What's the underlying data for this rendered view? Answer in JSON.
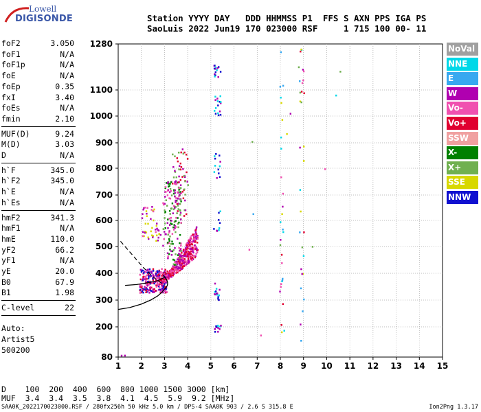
{
  "logo": {
    "line1": "Lowell",
    "line2": "DIGISONDE"
  },
  "header": {
    "row1": "Station YYYY DAY   DDD HHMMSS P1  FFS S AXN PPS IGA PS",
    "row2": "SaoLuis 2022 Jun19 170 023000 RSF     1 715 100 00- 11"
  },
  "params": [
    {
      "label": "foF2",
      "value": "3.050"
    },
    {
      "label": "foF1",
      "value": "N/A"
    },
    {
      "label": "foF1p",
      "value": "N/A"
    },
    {
      "label": "foE",
      "value": "N/A"
    },
    {
      "label": "foEp",
      "value": "0.35"
    },
    {
      "label": "fxI",
      "value": "3.40"
    },
    {
      "label": "foEs",
      "value": "N/A"
    },
    {
      "label": "fmin",
      "value": "2.10"
    },
    {
      "label": "MUF(D)",
      "value": "9.24"
    },
    {
      "label": "M(D)",
      "value": "3.03"
    },
    {
      "label": "D",
      "value": "N/A"
    },
    {
      "label": "h`F",
      "value": "345.0"
    },
    {
      "label": "h`F2",
      "value": "345.0"
    },
    {
      "label": "h`E",
      "value": "N/A"
    },
    {
      "label": "h`Es",
      "value": "N/A"
    },
    {
      "label": "hmF2",
      "value": "341.3"
    },
    {
      "label": "hmF1",
      "value": "N/A"
    },
    {
      "label": "hmE",
      "value": "110.0"
    },
    {
      "label": "yF2",
      "value": "66.2"
    },
    {
      "label": "yF1",
      "value": "N/A"
    },
    {
      "label": "yE",
      "value": "20.0"
    },
    {
      "label": "B0",
      "value": "67.9"
    },
    {
      "label": "B1",
      "value": "1.98"
    },
    {
      "label": "C-level",
      "value": "22"
    }
  ],
  "autoscale": [
    "Auto:",
    "Artist5",
    "500200"
  ],
  "legend": [
    {
      "label": "NoVal",
      "color": "#a0a0a0"
    },
    {
      "label": "NNE",
      "color": "#00d8e8"
    },
    {
      "label": "E",
      "color": "#38a8f0"
    },
    {
      "label": "W",
      "color": "#b000b0"
    },
    {
      "label": "Vo-",
      "color": "#f050b0"
    },
    {
      "label": "Vo+",
      "color": "#e00030"
    },
    {
      "label": "SSW",
      "color": "#f0a0a0"
    },
    {
      "label": "X-",
      "color": "#008000"
    },
    {
      "label": "X+",
      "color": "#70b050"
    },
    {
      "label": "SSE",
      "color": "#d8d800"
    },
    {
      "label": "NNW",
      "color": "#1010d0"
    }
  ],
  "chart_data": {
    "type": "scatter",
    "title": "",
    "xlabel": "",
    "ylabel": "",
    "xlim": [
      1,
      15
    ],
    "ylim": [
      80,
      1280
    ],
    "x_ticks": [
      1,
      2,
      3,
      4,
      5,
      6,
      7,
      8,
      9,
      10,
      11,
      12,
      13,
      14,
      15
    ],
    "y_ticks": [
      80,
      200,
      300,
      400,
      500,
      600,
      700,
      800,
      900,
      1000,
      1100,
      1280
    ],
    "grid": true,
    "y_scale": "compressed-nonlinear",
    "profile_curve": [
      [
        1.0,
        265
      ],
      [
        1.5,
        272
      ],
      [
        2.0,
        285
      ],
      [
        2.4,
        300
      ],
      [
        2.7,
        315
      ],
      [
        2.9,
        330
      ],
      [
        3.0,
        341.3
      ]
    ],
    "profile_dashed": [
      [
        1.1,
        520
      ],
      [
        1.6,
        470
      ],
      [
        2.1,
        420
      ],
      [
        2.6,
        380
      ],
      [
        3.0,
        355
      ]
    ],
    "trace_line": [
      [
        1.3,
        355
      ],
      [
        1.8,
        358
      ],
      [
        2.3,
        365
      ],
      [
        2.7,
        372
      ],
      [
        3.0,
        385
      ]
    ],
    "clusters": [
      {
        "x": [
          1.9,
          3.1
        ],
        "y": [
          330,
          420
        ],
        "density": 260,
        "colors": [
          "#1010d0",
          "#f050b0",
          "#b000b0",
          "#e00030"
        ]
      },
      {
        "x": [
          2.7,
          4.4
        ],
        "y": [
          360,
          560
        ],
        "density": 520,
        "colors": [
          "#f050b0",
          "#b000b0",
          "#e00030"
        ]
      },
      {
        "x": [
          2.9,
          3.7
        ],
        "y": [
          430,
          760
        ],
        "density": 170,
        "colors": [
          "#008000",
          "#70b050",
          "#b000b0",
          "#f050b0"
        ]
      },
      {
        "x": [
          3.3,
          4.0
        ],
        "y": [
          620,
          880
        ],
        "density": 60,
        "colors": [
          "#b000b0",
          "#e00030",
          "#70b050"
        ]
      },
      {
        "x": [
          2.0,
          2.8
        ],
        "y": [
          520,
          660
        ],
        "density": 45,
        "colors": [
          "#b000b0",
          "#f050b0",
          "#d8d800"
        ]
      },
      {
        "x": [
          5.0,
          5.4
        ],
        "y": [
          300,
          1200
        ],
        "density": 80,
        "colors": [
          "#1010d0",
          "#b000b0",
          "#00d8e8"
        ]
      },
      {
        "x": [
          1.1,
          1.6
        ],
        "y": [
          80,
          90
        ],
        "density": 14,
        "colors": [
          "#1010d0",
          "#b000b0"
        ]
      },
      {
        "x": [
          5.9,
          10.6
        ],
        "y": [
          140,
          1280
        ],
        "density": 70,
        "colors": [
          "#00d8e8",
          "#38a8f0",
          "#b000b0",
          "#d8d800",
          "#f050b0",
          "#70b050",
          "#e00030"
        ]
      }
    ]
  },
  "d_muf": {
    "d_label": "D",
    "muf_label": "MUF",
    "d_values": [
      "100",
      "200",
      "400",
      "600",
      "800",
      "1000",
      "1500",
      "3000"
    ],
    "d_unit": "[km]",
    "muf_values": [
      "3.4",
      "3.4",
      "3.5",
      "3.8",
      "4.1",
      "4.5",
      "5.9",
      "9.2"
    ],
    "muf_unit": "[MHz]"
  },
  "footer": "SAA0K_2022170023000.RSF / 280fx256h 50 kHz 5.0 km / DPS-4 SAA0K 903 / 2.6 S 315.8 E",
  "version": "Ion2Png 1.3.17"
}
